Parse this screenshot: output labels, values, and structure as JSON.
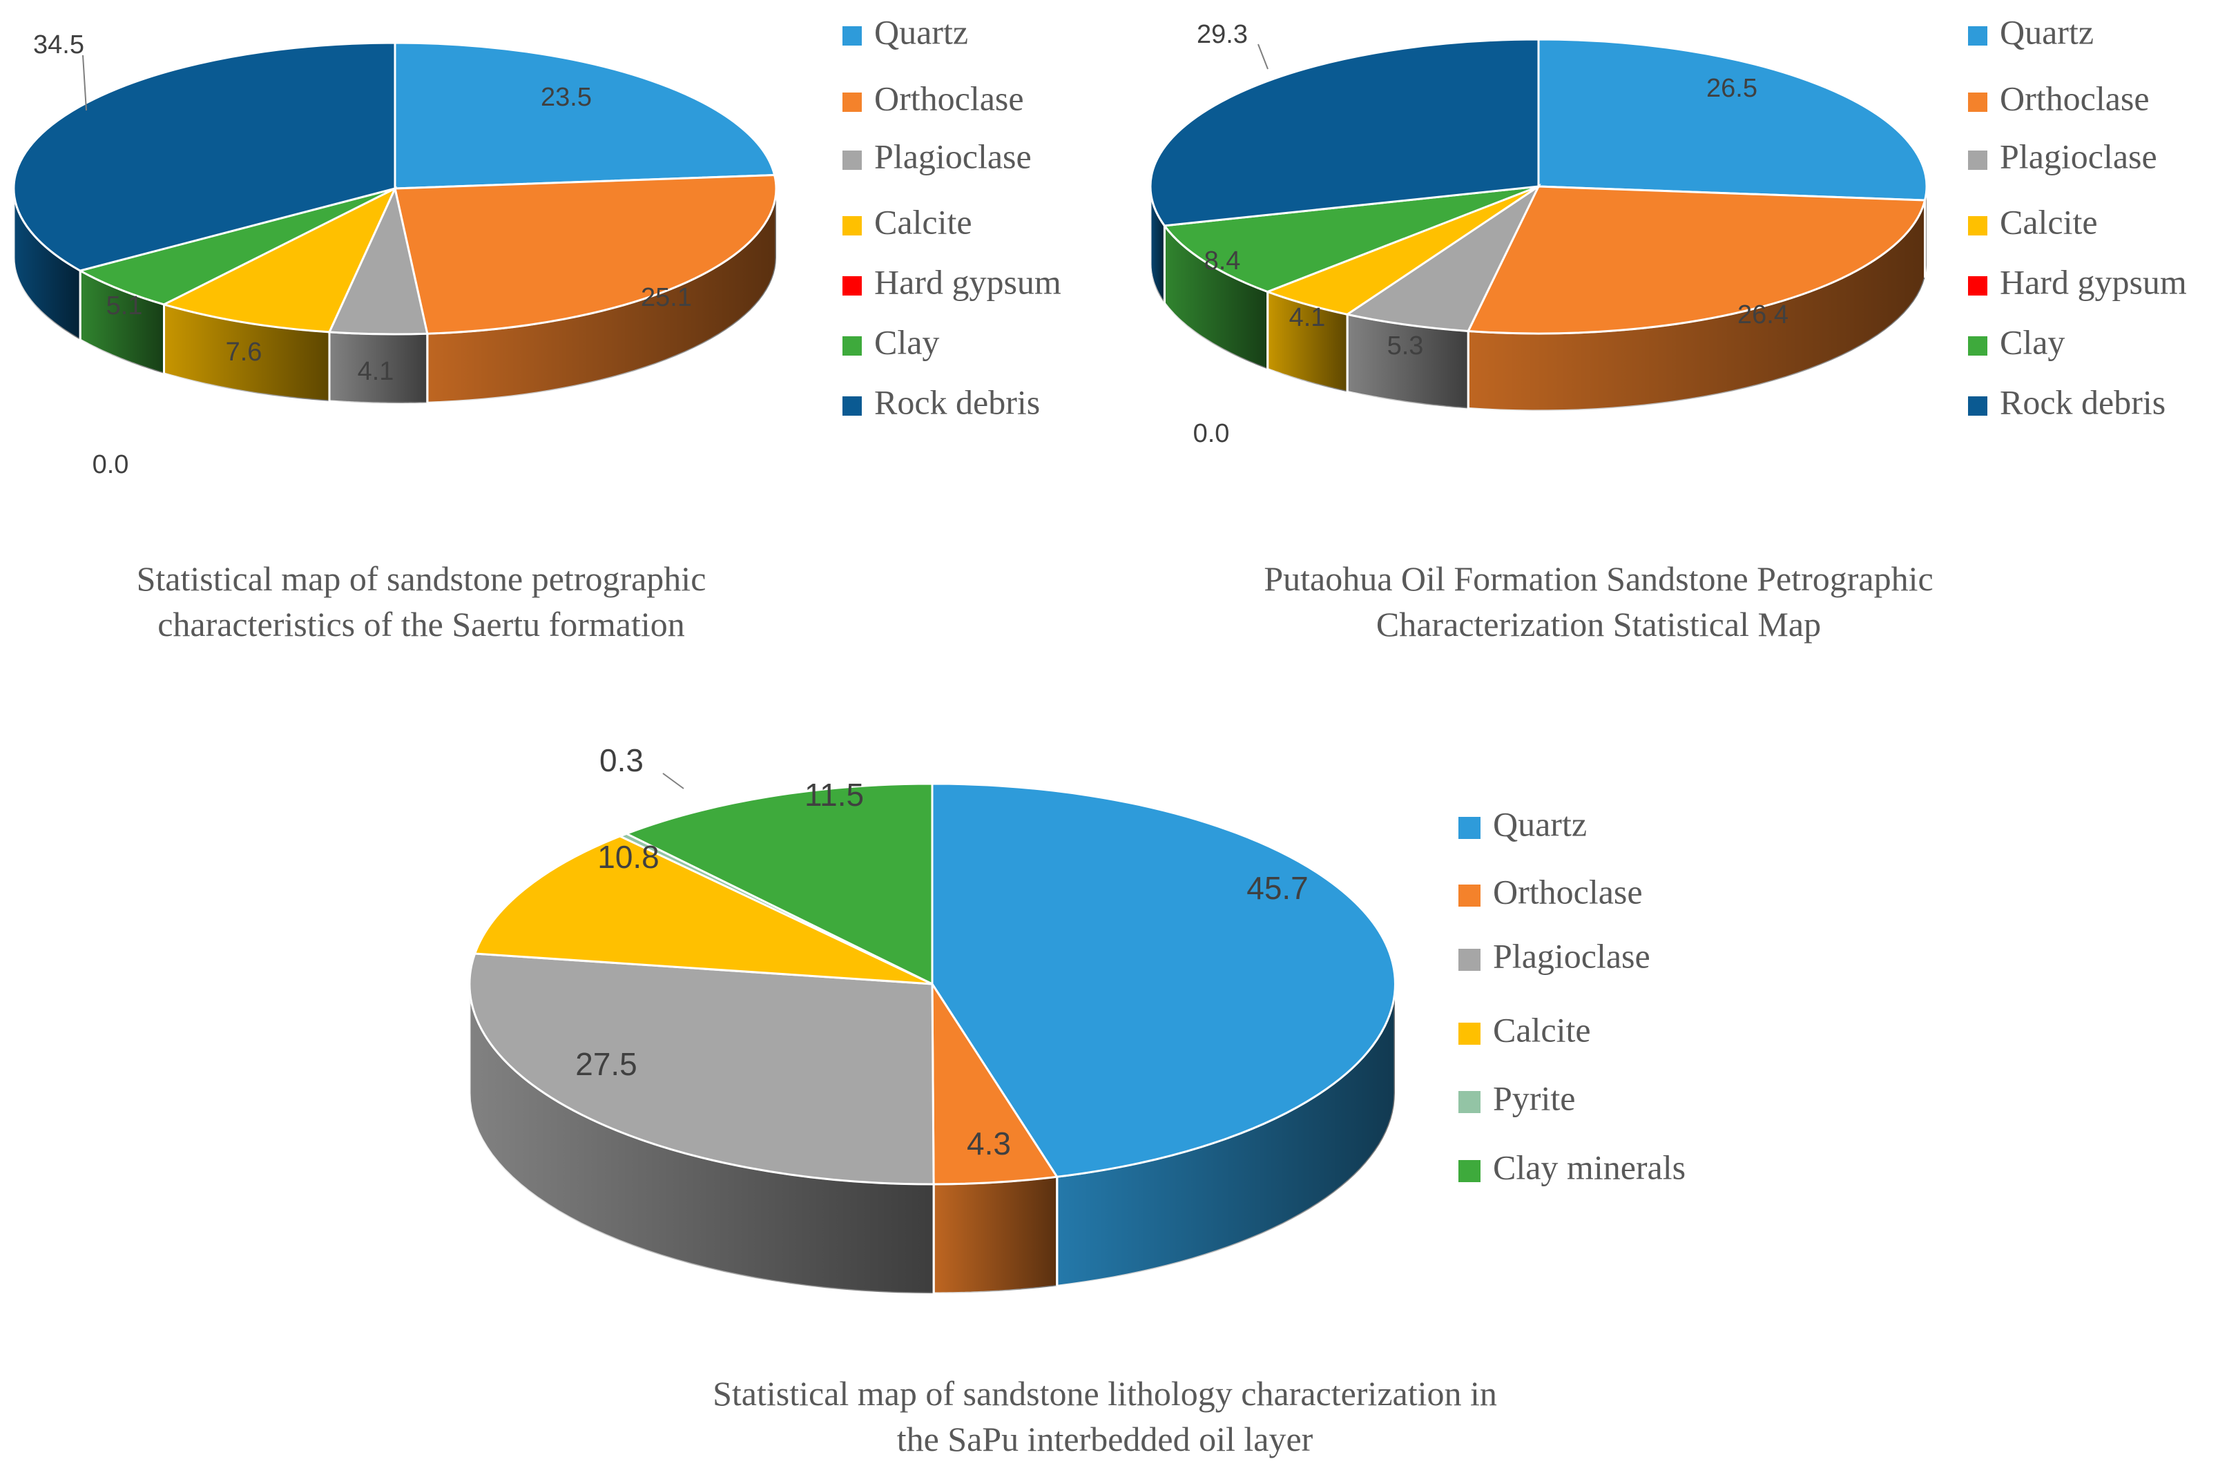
{
  "chart_data": [
    {
      "type": "pie",
      "style": "3d",
      "title": "",
      "caption_lines": [
        "Statistical map of sandstone petrographic",
        "characteristics of the Saertu formation"
      ],
      "categories": [
        "Quartz",
        "Orthoclase",
        "Plagioclase",
        "Calcite",
        "Hard gypsum",
        "Clay",
        "Rock debris"
      ],
      "values": [
        23.5,
        25.1,
        4.1,
        7.6,
        0.0,
        5.1,
        34.5
      ],
      "labels": [
        "23.5",
        "25.1",
        "4.1",
        "7.6",
        "0.0",
        "5.1",
        "34.5"
      ],
      "colors": [
        "#2E9BDA",
        "#F4822B",
        "#A6A6A6",
        "#FFC000",
        "#FF0000",
        "#3EAA3C",
        "#0A5A92"
      ],
      "legend": "right"
    },
    {
      "type": "pie",
      "style": "3d",
      "title": "",
      "caption_lines": [
        "Putaohua Oil Formation Sandstone Petrographic",
        "Characterization Statistical Map"
      ],
      "categories": [
        "Quartz",
        "Orthoclase",
        "Plagioclase",
        "Calcite",
        "Hard gypsum",
        "Clay",
        "Rock debris"
      ],
      "values": [
        26.5,
        26.4,
        5.3,
        4.1,
        0.0,
        8.4,
        29.3
      ],
      "labels": [
        "26.5",
        "26.4",
        "5.3",
        "4.1",
        "0.0",
        "8.4",
        "29.3"
      ],
      "colors": [
        "#2E9BDA",
        "#F4822B",
        "#A6A6A6",
        "#FFC000",
        "#FF0000",
        "#3EAA3C",
        "#0A5A92"
      ],
      "legend": "right"
    },
    {
      "type": "pie",
      "style": "3d",
      "title": "",
      "caption_lines": [
        "Statistical map of sandstone lithology characterization in",
        "the SaPu interbedded oil layer"
      ],
      "categories": [
        "Quartz",
        "Orthoclase",
        "Plagioclase",
        "Calcite",
        "Pyrite",
        "Clay minerals"
      ],
      "values": [
        45.7,
        4.3,
        27.5,
        10.8,
        0.3,
        11.5
      ],
      "labels": [
        "45.7",
        "4.3",
        "27.5",
        "10.8",
        "0.3",
        "11.5"
      ],
      "colors": [
        "#2E9BDA",
        "#F4822B",
        "#A6A6A6",
        "#FFC000",
        "#93C4A5",
        "#3EAA3C"
      ],
      "legend": "right"
    }
  ]
}
